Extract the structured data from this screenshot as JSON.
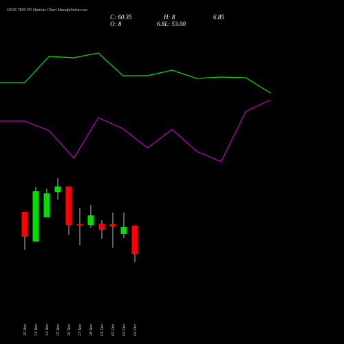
{
  "chart_data": {
    "type": "candlestick",
    "title": "OFSS 7800 PE Options Chart MunafaSutra.com",
    "annotations": [
      "C: 60.35",
      "H: 8",
      "6.85",
      "O: 8",
      "6.8L: 53.00"
    ],
    "categories": [
      "20 Nov",
      "21 Nov",
      "24 Nov",
      "25 Nov",
      "26 Nov",
      "27 Nov",
      "28 Nov",
      "01 Dec",
      "02 Dec",
      "03 Dec",
      "04 Dec"
    ],
    "open": [
      192,
      149,
      184,
      221,
      229,
      174,
      173,
      175,
      174,
      160,
      172
    ],
    "high": [
      192,
      228,
      226,
      241,
      229,
      198,
      202,
      180,
      191,
      191,
      172
    ],
    "low": [
      137,
      149,
      184,
      210,
      159,
      144,
      169,
      153,
      140,
      154,
      119
    ],
    "close": [
      156,
      222,
      219,
      229,
      173,
      172,
      187,
      166,
      171,
      170,
      131
    ],
    "up_color": "#00e000",
    "down_color": "#ff0000",
    "ylim": [
      0,
      500
    ],
    "lines": [
      {
        "color": "#00e000",
        "x": [
          0,
          1,
          2,
          3,
          4,
          5,
          6,
          7,
          8,
          9,
          10,
          11
        ],
        "values": [
          380,
          380,
          418,
          416,
          423,
          390,
          390,
          398,
          386,
          388,
          387,
          365
        ]
      },
      {
        "color": "#c000c0",
        "x": [
          0,
          1,
          2,
          3,
          4,
          5,
          6,
          7,
          8,
          9,
          10,
          11
        ],
        "values": [
          324,
          324,
          310,
          270,
          329,
          313,
          285,
          312,
          280,
          265,
          338,
          355
        ]
      }
    ],
    "line_xlim": [
      0,
      14
    ]
  }
}
